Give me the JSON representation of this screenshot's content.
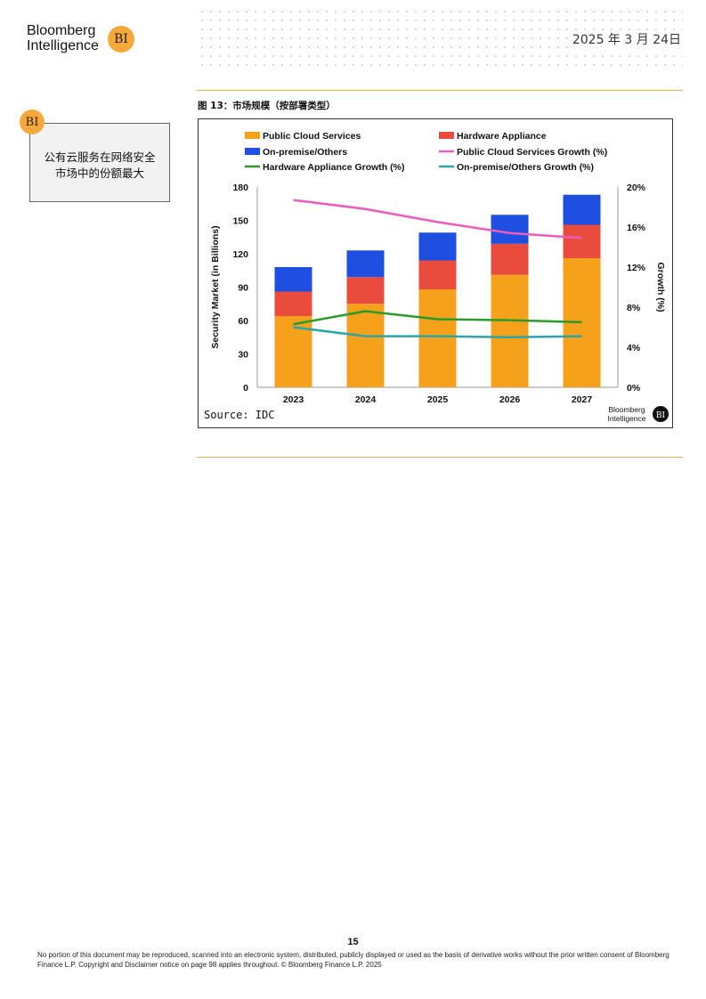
{
  "header": {
    "logo_line1": "Bloomberg",
    "logo_line2": "Intelligence",
    "logo_badge": "BI",
    "date": "2025 年 3 月 24日"
  },
  "callout": {
    "badge": "BI",
    "text": "公有云服务在网络安全市场中的份额最大"
  },
  "figure": {
    "caption": "图 13：市场规模（按部署类型）"
  },
  "chart_data": {
    "type": "bar",
    "stacked": true,
    "categories": [
      "2023",
      "2024",
      "2025",
      "2026",
      "2027"
    ],
    "series": [
      {
        "name": "Public Cloud Services",
        "values": [
          64,
          75,
          88,
          101,
          116
        ],
        "color": "#f6a11c"
      },
      {
        "name": "Hardware Appliance",
        "values": [
          22,
          24,
          26,
          28,
          30
        ],
        "color": "#e94c3c"
      },
      {
        "name": "On-premise/Others",
        "values": [
          22,
          24,
          25,
          26,
          27
        ],
        "color": "#1f4fe0"
      }
    ],
    "line_series": [
      {
        "name": "Public Cloud Services Growth (%)",
        "values": [
          18.7,
          17.8,
          16.5,
          15.4,
          14.9
        ],
        "color": "#ee5bbf"
      },
      {
        "name": "Hardware Appliance Growth (%)",
        "values": [
          6.3,
          7.6,
          6.8,
          6.7,
          6.5
        ],
        "color": "#2a9b2a"
      },
      {
        "name": "On-premise/Others Growth (%)",
        "values": [
          6.0,
          5.1,
          5.1,
          5.0,
          5.1
        ],
        "color": "#2aa5a8"
      }
    ],
    "ylabel": "Security Market (in Billions)",
    "ylim": [
      0,
      180
    ],
    "yticks": [
      "0",
      "30",
      "60",
      "90",
      "120",
      "150",
      "180"
    ],
    "y2label": "Growth (%)",
    "y2lim": [
      0,
      20
    ],
    "y2ticks": [
      "0%",
      "4%",
      "8%",
      "12%",
      "16%",
      "20%"
    ],
    "legend_position": "top",
    "grid": false,
    "source": "Source: IDC",
    "watermark_line1": "Bloomberg",
    "watermark_line2": "Intelligence",
    "watermark_badge": "BI"
  },
  "footer": {
    "page_number": "15",
    "disclaimer": "No portion of this document may be reproduced, scanned into an electronic system, distributed, publicly displayed or used as the basis of derivative works without the prior written consent of Bloomberg Finance L.P. Copyright and Disclaimer notice on page 98 applies throughout. © Bloomberg Finance L.P. 2025"
  }
}
